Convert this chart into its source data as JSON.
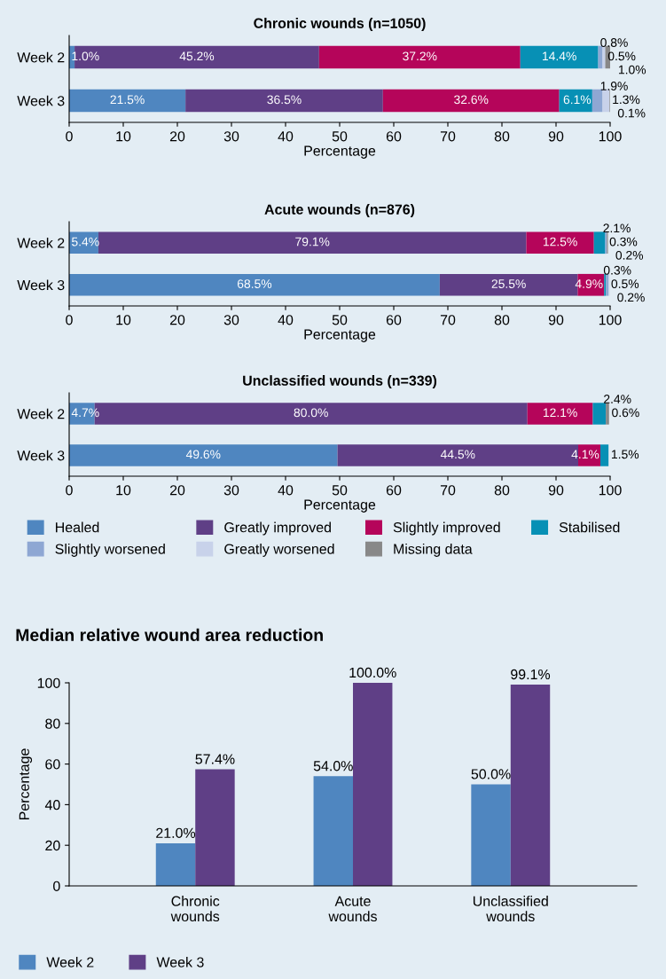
{
  "chart_data": [
    {
      "type": "bar",
      "orientation": "horizontal",
      "stacked": true,
      "title": "Chronic wounds (n=1050)",
      "xlabel": "Percentage",
      "categories": [
        "Week 2",
        "Week 3"
      ],
      "xlim": [
        0,
        100
      ],
      "xticks": [
        0,
        10,
        20,
        30,
        40,
        50,
        60,
        70,
        80,
        90,
        100
      ],
      "grid": false,
      "legend": false,
      "series": [
        {
          "color": "#4f86c0",
          "values": [
            1.0,
            21.5
          ],
          "value_labels": [
            "1.0%",
            "21.5%"
          ]
        },
        {
          "color": "#5f3f86",
          "values": [
            45.2,
            36.5
          ],
          "value_labels": [
            "45.2%",
            "36.5%"
          ]
        },
        {
          "color": "#b5055a",
          "values": [
            37.2,
            32.6
          ],
          "value_labels": [
            "37.2%",
            "32.6%"
          ]
        },
        {
          "color": "#0790b5",
          "values": [
            14.4,
            6.1
          ],
          "value_labels": [
            "14.4%",
            "6.1%"
          ]
        },
        {
          "color": "#8ea7d3",
          "values": [
            0.8,
            1.9
          ],
          "value_labels": [
            "0.8%",
            "1.9%"
          ]
        },
        {
          "color": "#c8d2ea",
          "values": [
            0.5,
            1.3
          ],
          "value_labels": [
            "0.5%",
            "1.3%"
          ]
        },
        {
          "color": "#888888",
          "values": [
            1.0,
            0.1
          ],
          "value_labels": [
            "1.0%",
            "0.1%"
          ]
        }
      ]
    },
    {
      "type": "bar",
      "orientation": "horizontal",
      "stacked": true,
      "title": "Acute wounds (n=876)",
      "xlabel": "Percentage",
      "categories": [
        "Week 2",
        "Week 3"
      ],
      "xlim": [
        0,
        100
      ],
      "xticks": [
        0,
        10,
        20,
        30,
        40,
        50,
        60,
        70,
        80,
        90,
        100
      ],
      "grid": false,
      "legend": false,
      "series": [
        {
          "color": "#4f86c0",
          "values": [
            5.4,
            68.5
          ],
          "value_labels": [
            "5.4%",
            "68.5%"
          ]
        },
        {
          "color": "#5f3f86",
          "values": [
            79.1,
            25.5
          ],
          "value_labels": [
            "79.1%",
            "25.5%"
          ]
        },
        {
          "color": "#b5055a",
          "values": [
            12.5,
            4.9
          ],
          "value_labels": [
            "12.5%",
            "4.9%"
          ]
        },
        {
          "color": "#0790b5",
          "values": [
            2.1,
            0.3
          ],
          "value_labels": [
            "2.1%",
            "0.3%"
          ]
        },
        {
          "color": "#8ea7d3",
          "values": [
            0.3,
            0.5
          ],
          "value_labels": [
            "0.3%",
            "0.5%"
          ]
        },
        {
          "color": "#c8d2ea",
          "values": [
            null,
            0.2
          ],
          "value_labels": [
            null,
            "0.2%"
          ]
        },
        {
          "color": "#888888",
          "values": [
            0.2,
            null
          ],
          "value_labels": [
            "0.2%",
            null
          ]
        }
      ]
    },
    {
      "type": "bar",
      "orientation": "horizontal",
      "stacked": true,
      "title": "Unclassified wounds (n=339)",
      "xlabel": "Percentage",
      "categories": [
        "Week 2",
        "Week 3"
      ],
      "xlim": [
        0,
        100
      ],
      "xticks": [
        0,
        10,
        20,
        30,
        40,
        50,
        60,
        70,
        80,
        90,
        100
      ],
      "grid": false,
      "legend": "bottom",
      "series": [
        {
          "name": "Healed",
          "color": "#4f86c0",
          "values": [
            4.7,
            49.6
          ],
          "value_labels": [
            "4.7%",
            "49.6%"
          ]
        },
        {
          "name": "Greatly improved",
          "color": "#5f3f86",
          "values": [
            80.0,
            44.5
          ],
          "value_labels": [
            "80.0%",
            "44.5%"
          ]
        },
        {
          "name": "Slightly improved",
          "color": "#b5055a",
          "values": [
            12.1,
            4.1
          ],
          "value_labels": [
            "12.1%",
            "4.1%"
          ]
        },
        {
          "name": "Stabilised",
          "color": "#0790b5",
          "values": [
            2.4,
            1.5
          ],
          "value_labels": [
            "2.4%",
            "1.5%"
          ]
        },
        {
          "name": "Slightly worsened",
          "color": "#8ea7d3",
          "values": [
            null,
            null
          ],
          "value_labels": [
            null,
            null
          ]
        },
        {
          "name": "Greatly worsened",
          "color": "#c8d2ea",
          "values": [
            null,
            null
          ],
          "value_labels": [
            null,
            null
          ]
        },
        {
          "name": "Missing data",
          "color": "#888888",
          "values": [
            0.6,
            null
          ],
          "value_labels": [
            "0.6%",
            null
          ]
        }
      ]
    },
    {
      "type": "bar",
      "title": "Median relative wound area reduction",
      "ylabel": "Percentage",
      "categories": [
        "Chronic\nwounds",
        "Acute\nwounds",
        "Unclassified\nwounds"
      ],
      "ylim": [
        0,
        100
      ],
      "yticks": [
        0,
        20,
        40,
        60,
        80,
        100
      ],
      "grid": false,
      "legend": "bottom left",
      "series": [
        {
          "name": "Week 2",
          "color": "#4f86c0",
          "values": [
            21.0,
            54.0,
            50.0
          ],
          "value_labels": [
            "21.0%",
            "54.0%",
            "50.0%"
          ]
        },
        {
          "name": "Week 3",
          "color": "#5f3f86",
          "values": [
            57.4,
            100.0,
            99.1
          ],
          "value_labels": [
            "57.4%",
            "100.0%",
            "99.1%"
          ]
        }
      ]
    }
  ]
}
